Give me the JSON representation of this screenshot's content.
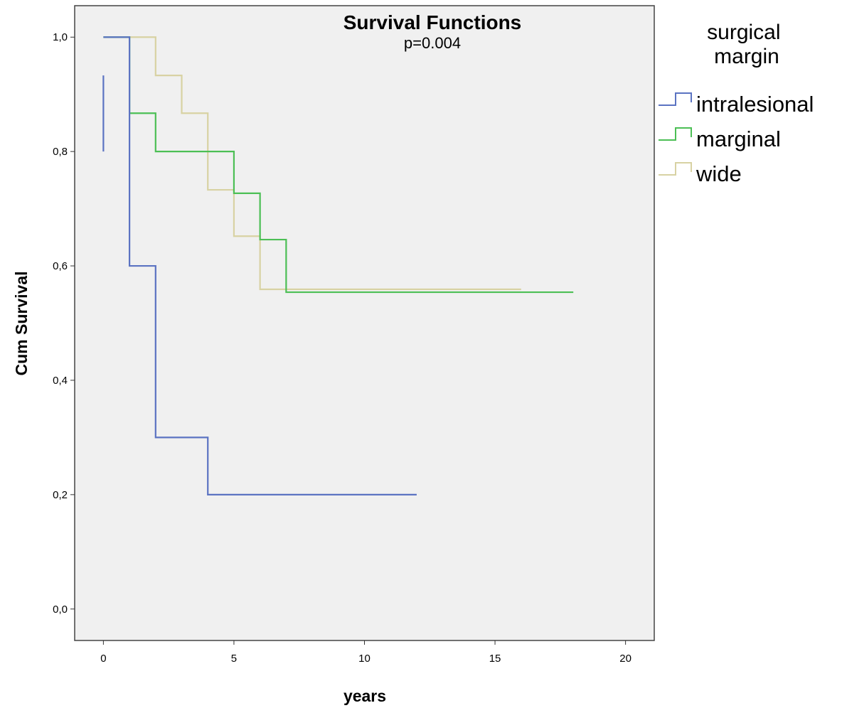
{
  "chart_data": {
    "type": "line",
    "step": true,
    "title": "Survival Functions",
    "subtitle": "p=0.004",
    "xlabel": "years",
    "ylabel": "Cum Survival",
    "xlim": [
      -1.1,
      21.1
    ],
    "ylim": [
      -0.055,
      1.055
    ],
    "xticks": [
      0,
      5,
      10,
      15,
      20
    ],
    "xtick_labels": [
      "0",
      "5",
      "10",
      "15",
      "20"
    ],
    "yticks": [
      0.0,
      0.2,
      0.4,
      0.6,
      0.8,
      1.0
    ],
    "ytick_labels": [
      "0,0",
      "0,2",
      "0,4",
      "0,6",
      "0,8",
      "1,0"
    ],
    "grid": false,
    "background": "#f0f0f0",
    "legend_title": "surgical margin",
    "legend_position": "right",
    "series": [
      {
        "name": "intralesional",
        "color": "#5b73c2",
        "x": [
          0,
          1,
          2,
          4,
          12
        ],
        "y": [
          1.0,
          0.6,
          0.3,
          0.2,
          0.2
        ],
        "initial_drop": [
          0.8,
          0.933
        ]
      },
      {
        "name": "marginal",
        "color": "#4cbf55",
        "x": [
          0,
          1,
          2,
          5,
          6,
          7,
          18
        ],
        "y": [
          1.0,
          0.867,
          0.8,
          0.727,
          0.646,
          0.554,
          0.554
        ]
      },
      {
        "name": "wide",
        "color": "#d8d2a3",
        "x": [
          0,
          2,
          3,
          4,
          5,
          6,
          16
        ],
        "y": [
          1.0,
          0.933,
          0.867,
          0.733,
          0.652,
          0.559,
          0.559
        ]
      }
    ]
  }
}
